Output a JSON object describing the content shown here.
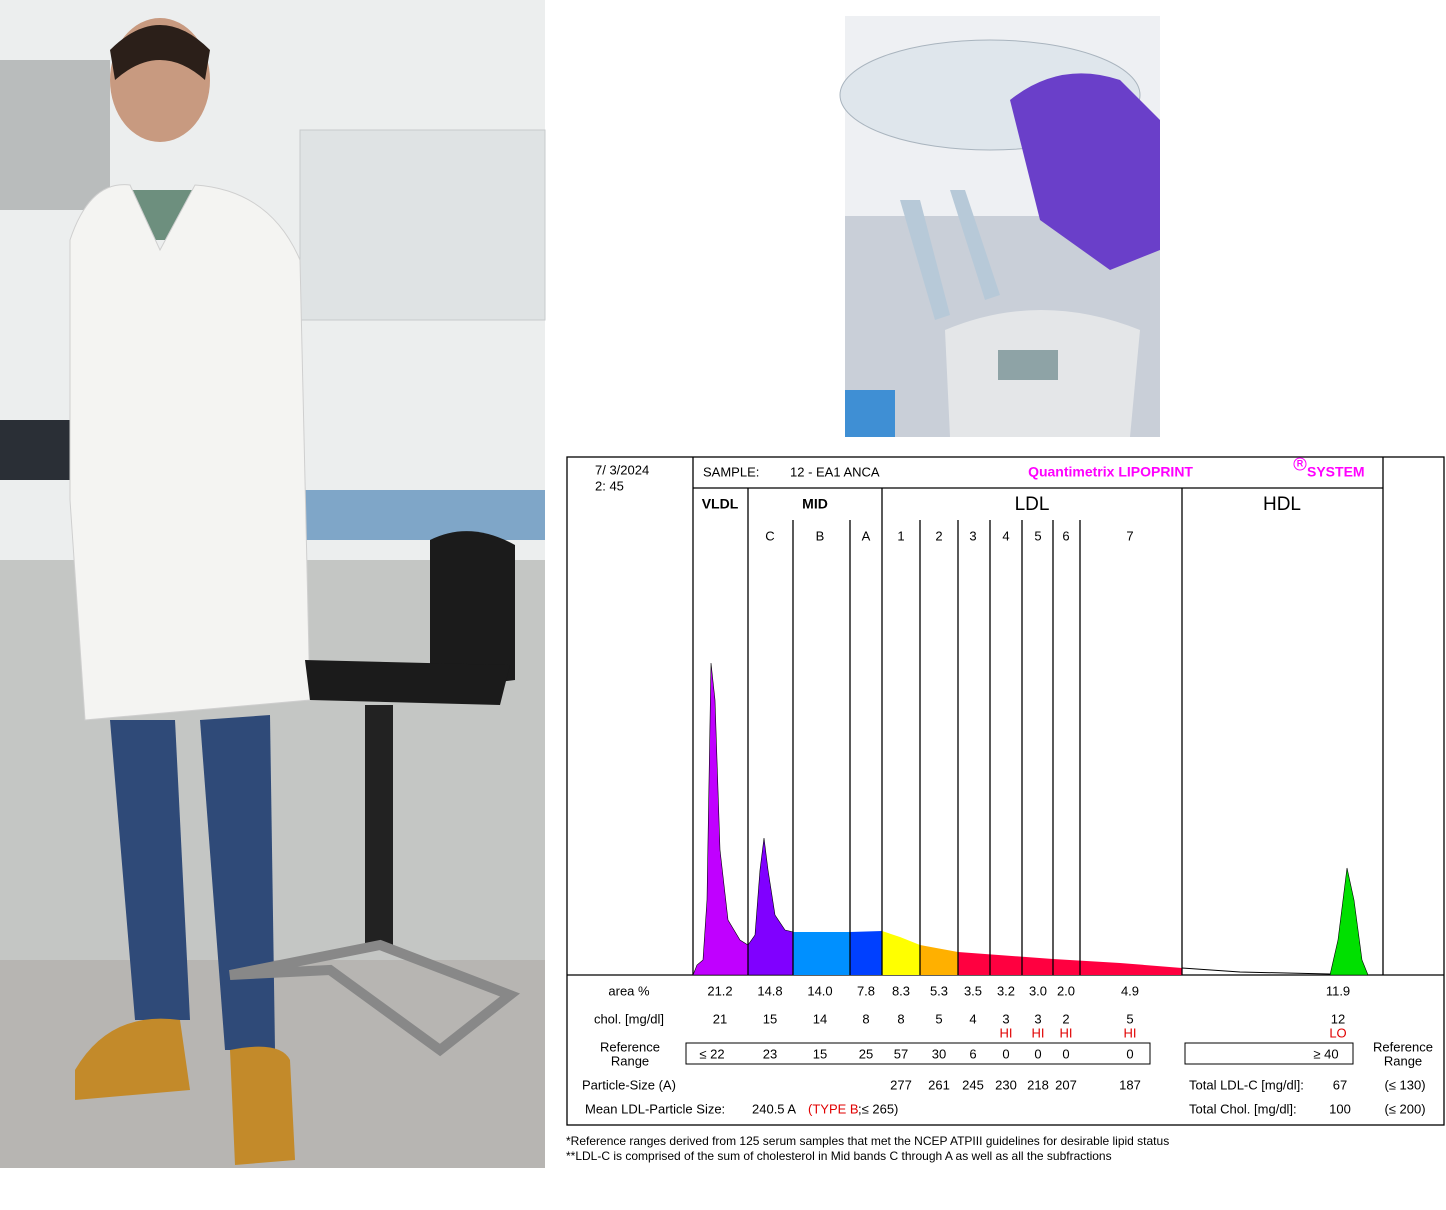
{
  "report": {
    "date": "7/  3/2024",
    "time": "2:  45",
    "sample_label": "SAMPLE:",
    "sample": "12 - EA1 ANCA",
    "brand": "Quantimetrix LIPOPRINT",
    "brand_mark": "R",
    "brand_suffix": "SYSTEM",
    "groups": [
      "VLDL",
      "MID",
      "LDL",
      "HDL"
    ],
    "bands": [
      "C",
      "B",
      "A",
      "1",
      "2",
      "3",
      "4",
      "5",
      "6",
      "7"
    ],
    "row_labels": {
      "area": "area %",
      "chol": "chol. [mg/dl]",
      "reference": [
        "Reference",
        "Range"
      ],
      "size": "Particle-Size (A)",
      "mean": "Mean LDL-Particle Size:"
    },
    "area": [
      "21.2",
      "14.8",
      "14.0",
      "7.8",
      "8.3",
      "5.3",
      "3.5",
      "3.2",
      "3.0",
      "2.0",
      "4.9",
      "11.9"
    ],
    "chol": [
      "21",
      "15",
      "14",
      "8",
      "8",
      "5",
      "4",
      "3",
      "3",
      "2",
      "5",
      "12"
    ],
    "flags": [
      null,
      null,
      null,
      null,
      null,
      null,
      null,
      "HI",
      "HI",
      "HI",
      "HI",
      "LO"
    ],
    "reference": [
      "≤  22",
      "23",
      "15",
      "25",
      "57",
      "30",
      "6",
      "0",
      "0",
      "0",
      "0",
      "≥  40"
    ],
    "size": [
      null,
      null,
      null,
      null,
      "277",
      "261",
      "245",
      "230",
      "218",
      "207",
      "187",
      null
    ],
    "mean_value": "240.5  A",
    "mean_type": "(TYPE B",
    "mean_ref": ";≤ 265)",
    "reference_right": [
      "Reference",
      "Range"
    ],
    "totals": [
      {
        "label": "Total LDL-C [mg/dl]:",
        "value": "67",
        "limit": "(≤ 130)"
      },
      {
        "label": "Total Chol. [mg/dl]:",
        "value": "100",
        "limit": "(≤ 200)"
      }
    ],
    "footnotes": [
      "*Reference ranges derived from 125 serum samples that met the NCEP ATPIII guidelines for desirable lipid status",
      "**LDL-C is comprised of the sum of cholesterol in Mid bands C through A as well as all the subfractions"
    ]
  }
}
